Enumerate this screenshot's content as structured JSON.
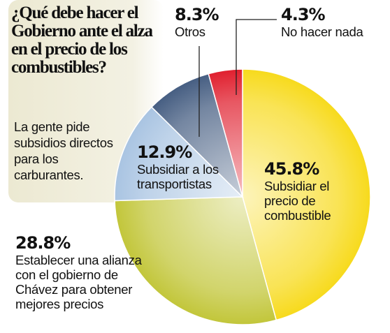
{
  "chart_data": {
    "type": "pie",
    "title": "¿Qué debe hacer el Gobierno ante el alza en el precio de los combustibles?",
    "subtitle": "La gente pide subsidios directos para los carburantes.",
    "categories": [
      "Subsidiar el precio de combustible",
      "Establecer una alianza con el gobierno de Chávez para obtener mejores precios",
      "Subsidiar a los transportistas",
      "Otros",
      "No hacer nada"
    ],
    "values": [
      45.8,
      28.8,
      12.9,
      8.3,
      4.3
    ],
    "value_labels": [
      "45.8%",
      "28.8%",
      "12.9%",
      "8.3%",
      "4.3%"
    ],
    "colors": [
      "#f7da1c",
      "#c2c63a",
      "#a9c4e2",
      "#465e82",
      "#e01f2e"
    ]
  }
}
